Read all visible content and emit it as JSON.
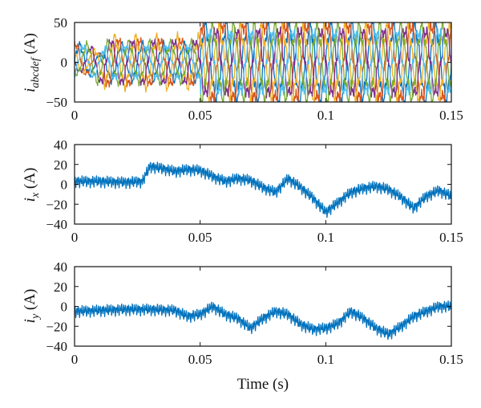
{
  "figure": {
    "xlabel": "Time (s)"
  },
  "chart_data": [
    {
      "type": "line",
      "panel": "iabcdef",
      "ylabel_var": "i",
      "ylabel_sub": "abcdef",
      "ylabel_unit": " (A)",
      "xlim": [
        0,
        0.15
      ],
      "ylim": [
        -50,
        50
      ],
      "xticks": [
        0,
        0.05,
        0.1,
        0.15
      ],
      "xtick_labels": [
        "0",
        "0.05",
        "0.1",
        "0.15"
      ],
      "yticks": [
        -50,
        0,
        50
      ],
      "ytick_labels": [
        "−50",
        "0",
        "50"
      ],
      "grid": false,
      "x_step": 0.0005,
      "notes_visible": "six phase currents, ~20–30 A peak before 0.05 s, ~40–50 A peak after",
      "series": [
        {
          "color": "#0072BD",
          "amplitude_before": 22,
          "amplitude_after": 45,
          "phase_deg": 0,
          "freq_hz": 120
        },
        {
          "color": "#D95319",
          "amplitude_before": 28,
          "amplitude_after": 47,
          "phase_deg": 60,
          "freq_hz": 120
        },
        {
          "color": "#EDB120",
          "amplitude_before": 30,
          "amplitude_after": 42,
          "phase_deg": 120,
          "freq_hz": 120
        },
        {
          "color": "#7E2F8E",
          "amplitude_before": 26,
          "amplitude_after": 40,
          "phase_deg": 180,
          "freq_hz": 120
        },
        {
          "color": "#77AC30",
          "amplitude_before": 24,
          "amplitude_after": 44,
          "phase_deg": 240,
          "freq_hz": 120
        },
        {
          "color": "#4DBEEE",
          "amplitude_before": 20,
          "amplitude_after": 38,
          "phase_deg": 300,
          "freq_hz": 120
        }
      ]
    },
    {
      "type": "line",
      "panel": "ix",
      "ylabel_var": "i",
      "ylabel_sub": "x",
      "ylabel_unit": " (A)",
      "xlim": [
        0,
        0.15
      ],
      "ylim": [
        -40,
        40
      ],
      "xticks": [
        0,
        0.05,
        0.1,
        0.15
      ],
      "xtick_labels": [
        "0",
        "0.05",
        "0.1",
        "0.15"
      ],
      "yticks": [
        -40,
        -20,
        0,
        20,
        40
      ],
      "ytick_labels": [
        "−40",
        "−20",
        "0",
        "20",
        "40"
      ],
      "grid": false,
      "series": [
        {
          "color": "#0072BD",
          "ripple": 5,
          "envelope": {
            "x": [
              0,
              0.01,
              0.02,
              0.027,
              0.03,
              0.035,
              0.04,
              0.045,
              0.05,
              0.055,
              0.06,
              0.065,
              0.07,
              0.075,
              0.08,
              0.085,
              0.09,
              0.095,
              0.1,
              0.105,
              0.11,
              0.115,
              0.12,
              0.125,
              0.13,
              0.135,
              0.14,
              0.145,
              0.15
            ],
            "y": [
              3,
              3,
              2,
              3,
              18,
              16,
              13,
              15,
              14,
              8,
              3,
              6,
              4,
              -3,
              -8,
              6,
              -3,
              -14,
              -28,
              -18,
              -8,
              -4,
              -2,
              -5,
              -13,
              -24,
              -12,
              -6,
              -12
            ]
          }
        }
      ]
    },
    {
      "type": "line",
      "panel": "iy",
      "ylabel_var": "i",
      "ylabel_sub": "y",
      "ylabel_unit": " (A)",
      "xlim": [
        0,
        0.15
      ],
      "ylim": [
        -40,
        40
      ],
      "xticks": [
        0,
        0.05,
        0.1,
        0.15
      ],
      "xtick_labels": [
        "0",
        "0.05",
        "0.1",
        "0.15"
      ],
      "yticks": [
        -40,
        -20,
        0,
        20,
        40
      ],
      "ytick_labels": [
        "−40",
        "−20",
        "0",
        "20",
        "40"
      ],
      "grid": false,
      "series": [
        {
          "color": "#0072BD",
          "ripple": 5,
          "envelope": {
            "x": [
              0,
              0.01,
              0.02,
              0.03,
              0.04,
              0.045,
              0.05,
              0.055,
              0.06,
              0.065,
              0.07,
              0.075,
              0.08,
              0.085,
              0.09,
              0.095,
              0.1,
              0.105,
              0.11,
              0.115,
              0.12,
              0.125,
              0.13,
              0.135,
              0.14,
              0.145,
              0.15
            ],
            "y": [
              -5,
              -4,
              -3,
              -3,
              -4,
              -10,
              -8,
              0,
              -8,
              -12,
              -22,
              -12,
              -5,
              -8,
              -18,
              -23,
              -22,
              -17,
              -5,
              -12,
              -22,
              -28,
              -20,
              -10,
              -5,
              0,
              0
            ]
          }
        }
      ]
    }
  ]
}
